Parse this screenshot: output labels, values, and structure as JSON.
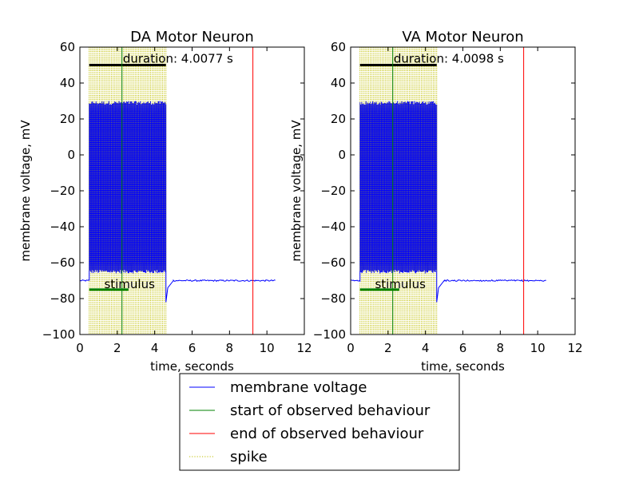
{
  "chart_data": [
    {
      "type": "line",
      "title": "DA Motor Neuron",
      "xlabel": "time, seconds",
      "ylabel": "membrane voltage, mV",
      "xlim": [
        0,
        12
      ],
      "ylim": [
        -100,
        60
      ],
      "xticks": [
        "0",
        "2",
        "4",
        "6",
        "8",
        "10",
        "12"
      ],
      "yticks": [
        "−100",
        "−80",
        "−60",
        "−40",
        "−20",
        "0",
        "20",
        "40",
        "60"
      ],
      "grid": false,
      "duration_text": "duration: 4.0077 s",
      "stimulus_text": "stimulus",
      "stimulus": {
        "start": 0.5,
        "end": 2.6,
        "y": -75
      },
      "duration_bar": {
        "start": 0.5,
        "end": 4.6,
        "y": 50
      },
      "spike_region": {
        "start": 0.5,
        "end": 4.6
      },
      "burst_range": {
        "low": -65,
        "high": 29
      },
      "start_of_behaviour": 2.25,
      "end_of_behaviour": 9.25,
      "membrane_voltage": {
        "baseline": -70,
        "trace_start": 0,
        "trace_end": 10.5,
        "burst_start": 0.5,
        "burst_end": 4.6,
        "undershoot": -82,
        "recovery_end": 5.0
      }
    },
    {
      "type": "line",
      "title": "VA Motor Neuron",
      "xlabel": "time, seconds",
      "ylabel": "membrane voltage, mV",
      "xlim": [
        0,
        12
      ],
      "ylim": [
        -100,
        60
      ],
      "xticks": [
        "0",
        "2",
        "4",
        "6",
        "8",
        "10",
        "12"
      ],
      "yticks": [
        "−100",
        "−80",
        "−60",
        "−40",
        "−20",
        "0",
        "20",
        "40",
        "60"
      ],
      "grid": false,
      "duration_text": "duration: 4.0098 s",
      "stimulus_text": "stimulus",
      "stimulus": {
        "start": 0.5,
        "end": 2.6,
        "y": -75
      },
      "duration_bar": {
        "start": 0.5,
        "end": 4.6,
        "y": 50
      },
      "spike_region": {
        "start": 0.5,
        "end": 4.6
      },
      "burst_range": {
        "low": -65,
        "high": 29
      },
      "start_of_behaviour": 2.25,
      "end_of_behaviour": 9.25,
      "membrane_voltage": {
        "baseline": -70,
        "trace_start": 0,
        "trace_end": 10.5,
        "burst_start": 0.5,
        "burst_end": 4.6,
        "undershoot": -82,
        "recovery_end": 5.0
      }
    }
  ],
  "legend": {
    "placement": "bottom-center",
    "entries": [
      {
        "label": "membrane voltage",
        "color": "#0000ff",
        "style": "solid"
      },
      {
        "label": "start of observed behaviour",
        "color": "#008000",
        "style": "solid"
      },
      {
        "label": "end of observed behaviour",
        "color": "#ff0000",
        "style": "solid"
      },
      {
        "label": "spike",
        "color": "#bfbf00",
        "style": "dotted"
      }
    ]
  },
  "colors": {
    "trace": "#0000ff",
    "spike": "#bfbf00",
    "start": "#008000",
    "end": "#ff0000",
    "stimulus": "#008000",
    "duration_bar": "#000000"
  }
}
